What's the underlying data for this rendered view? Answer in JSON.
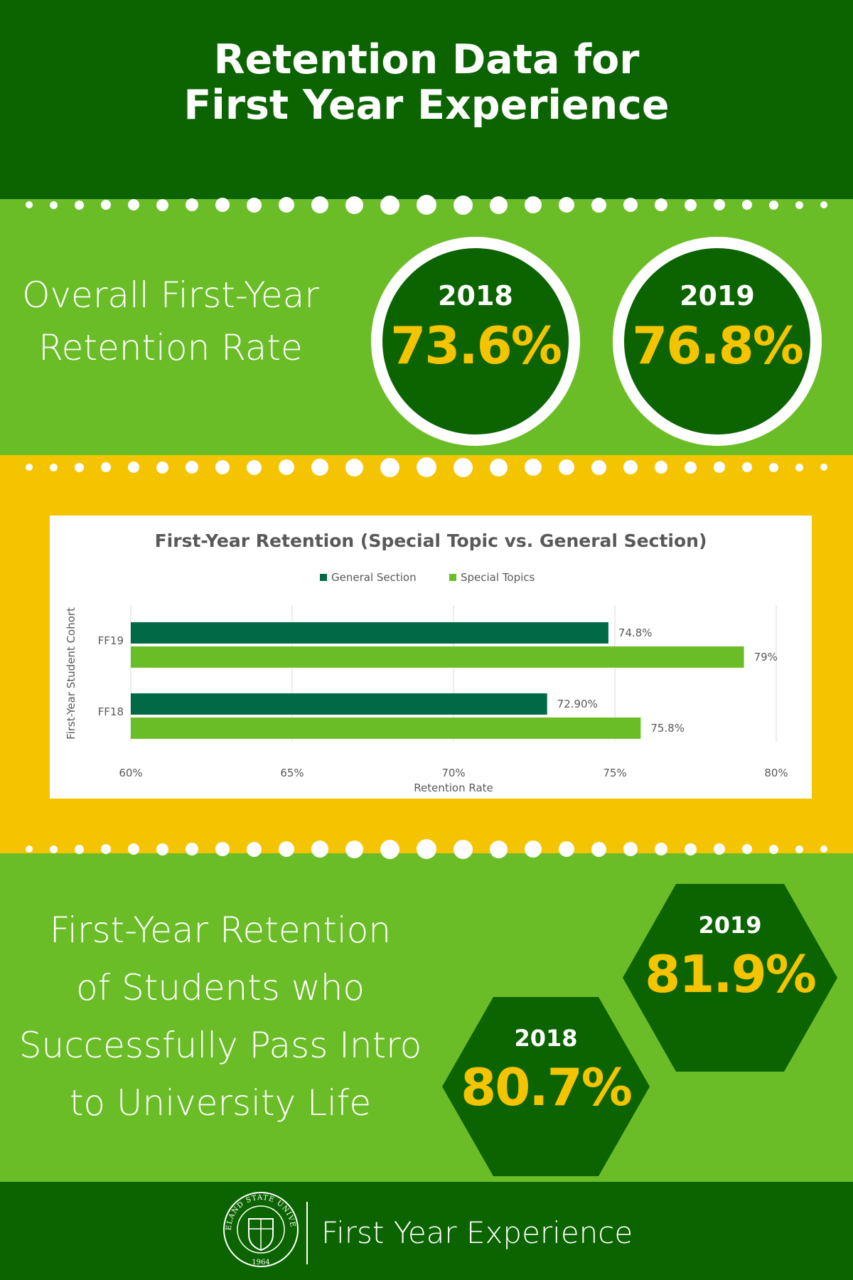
{
  "header": {
    "title_line1": "Retention Data for",
    "title_line2": "First Year Experience"
  },
  "overall": {
    "label_line1": "Overall First-Year",
    "label_line2": "Retention Rate",
    "stats": [
      {
        "year": "2018",
        "value": "73.6%"
      },
      {
        "year": "2019",
        "value": "76.8%"
      }
    ]
  },
  "chart_data": {
    "type": "bar",
    "orientation": "horizontal",
    "title": "First-Year Retention (Special Topic vs. General Section)",
    "xlabel": "Retention Rate",
    "ylabel": "First-Year Student Cohort",
    "categories": [
      "FF19",
      "FF18"
    ],
    "series": [
      {
        "name": "General Section",
        "values": [
          74.8,
          72.9
        ],
        "labels": [
          "74.8%",
          "72.90%"
        ],
        "color": "#006a47"
      },
      {
        "name": "Special Topics",
        "values": [
          79,
          75.8
        ],
        "labels": [
          "79%",
          "75.8%"
        ],
        "color": "#6bbd28"
      }
    ],
    "xlim": [
      60,
      80
    ],
    "xticks": [
      "60%",
      "65%",
      "70%",
      "75%",
      "80%"
    ],
    "grid": true,
    "legend": "top-center"
  },
  "intro": {
    "label_line1": "First-Year Retention",
    "label_line2": "of Students who",
    "label_line3": "Successfully Pass Intro",
    "label_line4": "to University Life",
    "stats": [
      {
        "year": "2019",
        "value": "81.9%"
      },
      {
        "year": "2018",
        "value": "80.7%"
      }
    ]
  },
  "footer": {
    "seal_text": "CLEVELAND STATE UNIVERSITY",
    "seal_year": "1964",
    "program_name": "First Year Experience"
  },
  "colors": {
    "dark_green": "#0b6400",
    "light_green": "#6bbd28",
    "yellow": "#f5c400",
    "teal_bar": "#006a47"
  }
}
